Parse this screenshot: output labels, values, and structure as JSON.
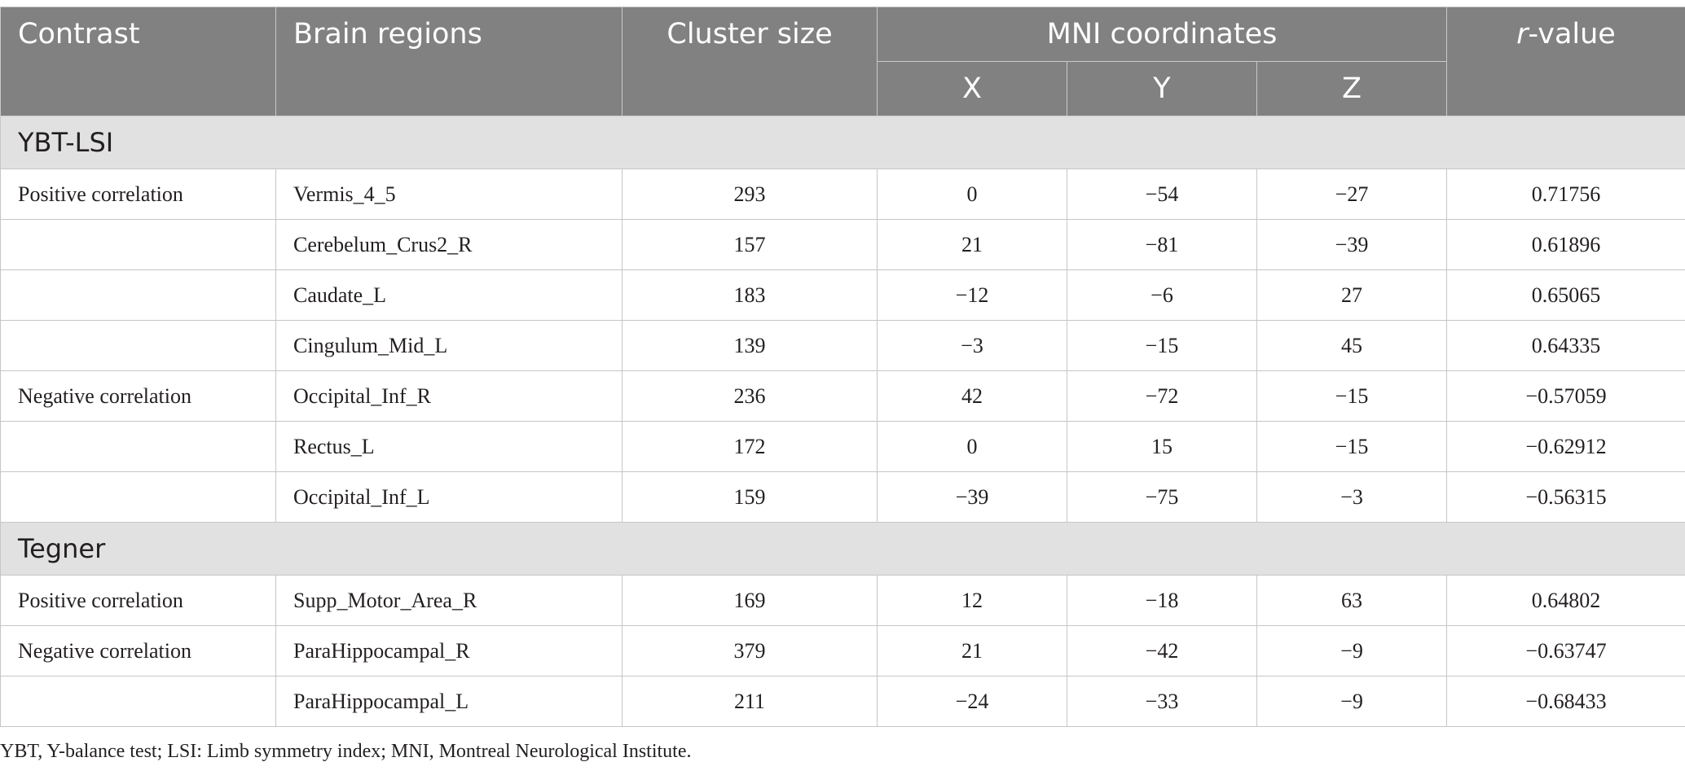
{
  "header": {
    "contrast": "Contrast",
    "brain_regions": "Brain regions",
    "cluster_size": "Cluster size",
    "mni": "MNI coordinates",
    "x": "X",
    "y": "Y",
    "z": "Z",
    "r_italic": "r",
    "r_suffix": "-value"
  },
  "sections": [
    {
      "title": "YBT-LSI",
      "rows": [
        {
          "contrast": "Positive correlation",
          "region": "Vermis_4_5",
          "cluster": "293",
          "x": "0",
          "y": "−54",
          "z": "−27",
          "r": "0.71756"
        },
        {
          "contrast": "",
          "region": "Cerebelum_Crus2_R",
          "cluster": "157",
          "x": "21",
          "y": "−81",
          "z": "−39",
          "r": "0.61896"
        },
        {
          "contrast": "",
          "region": "Caudate_L",
          "cluster": "183",
          "x": "−12",
          "y": "−6",
          "z": "27",
          "r": "0.65065"
        },
        {
          "contrast": "",
          "region": "Cingulum_Mid_L",
          "cluster": "139",
          "x": "−3",
          "y": "−15",
          "z": "45",
          "r": "0.64335"
        },
        {
          "contrast": "Negative correlation",
          "region": "Occipital_Inf_R",
          "cluster": "236",
          "x": "42",
          "y": "−72",
          "z": "−15",
          "r": "−0.57059"
        },
        {
          "contrast": "",
          "region": "Rectus_L",
          "cluster": "172",
          "x": "0",
          "y": "15",
          "z": "−15",
          "r": "−0.62912"
        },
        {
          "contrast": "",
          "region": "Occipital_Inf_L",
          "cluster": "159",
          "x": "−39",
          "y": "−75",
          "z": "−3",
          "r": "−0.56315"
        }
      ]
    },
    {
      "title": "Tegner",
      "rows": [
        {
          "contrast": "Positive correlation",
          "region": "Supp_Motor_Area_R",
          "cluster": "169",
          "x": "12",
          "y": "−18",
          "z": "63",
          "r": "0.64802"
        },
        {
          "contrast": "Negative correlation",
          "region": "ParaHippocampal_R",
          "cluster": "379",
          "x": "21",
          "y": "−42",
          "z": "−9",
          "r": "−0.63747"
        },
        {
          "contrast": "",
          "region": "ParaHippocampal_L",
          "cluster": "211",
          "x": "−24",
          "y": "−33",
          "z": "−9",
          "r": "−0.68433"
        }
      ]
    }
  ],
  "footnote": "YBT, Y-balance test; LSI: Limb symmetry index; MNI, Montreal Neurological Institute."
}
